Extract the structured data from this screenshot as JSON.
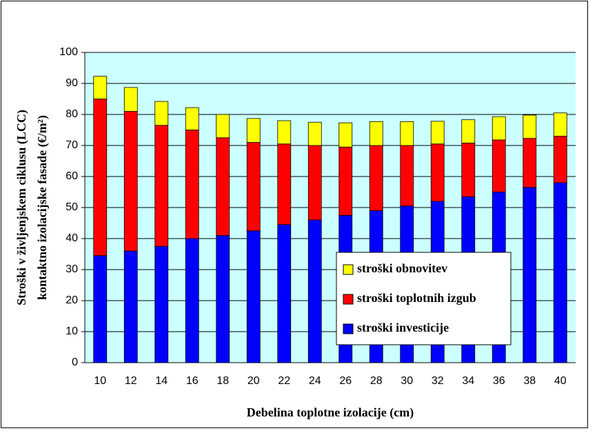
{
  "chart_data": {
    "type": "stacked_bar",
    "xlabel": "Debelina toplotne izolacije (cm)",
    "ylabel": [
      "Stroški v življenjskem ciklusu (LCC)",
      "kontaktno izolacijske fasade (€/m²)"
    ],
    "categories": [
      "10",
      "12",
      "14",
      "16",
      "18",
      "20",
      "22",
      "24",
      "26",
      "28",
      "30",
      "32",
      "34",
      "36",
      "38",
      "40"
    ],
    "series": [
      {
        "name": "stroški investicije",
        "color": "#0000ff",
        "values": [
          34.5,
          36,
          37.5,
          40,
          41,
          42.5,
          44.5,
          46,
          47.5,
          49,
          50.5,
          52,
          53.5,
          55,
          56.5,
          58
        ]
      },
      {
        "name": "stroški toplotnih izgub",
        "color": "#ff0000",
        "values": [
          50.5,
          45,
          39,
          35,
          31.5,
          28.5,
          26,
          24,
          22,
          21,
          19.5,
          18.5,
          17.3,
          16.8,
          15.8,
          15
        ]
      },
      {
        "name": "stroški obnovitev",
        "color": "#ffff00",
        "values": [
          7.3,
          7.7,
          7.7,
          7.2,
          7.5,
          7.7,
          7.5,
          7.5,
          7.8,
          7.7,
          7.7,
          7.3,
          7.5,
          7.5,
          7.5,
          7.5
        ]
      }
    ],
    "ylim": [
      0,
      100
    ],
    "yticks": [
      0,
      10,
      20,
      30,
      40,
      50,
      60,
      70,
      80,
      90,
      100
    ],
    "grid": true,
    "legend": "lower right"
  }
}
